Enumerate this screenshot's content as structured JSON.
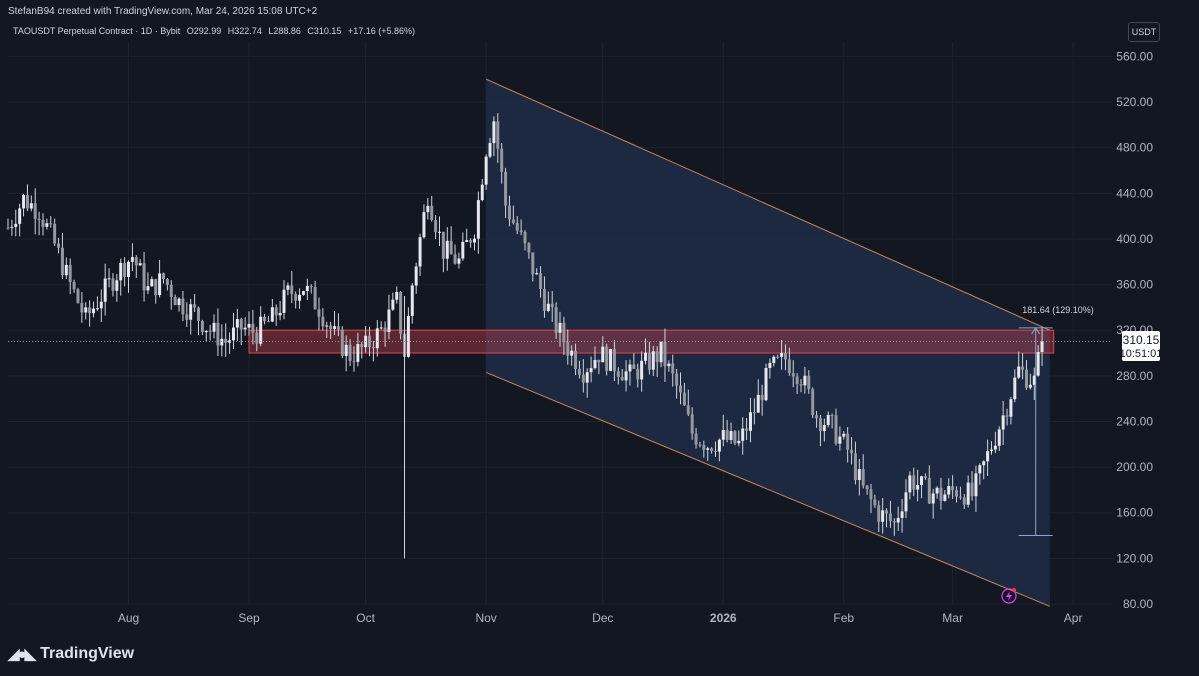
{
  "header": {
    "credit": "StefanB94 created with TradingView.com, Mar 24, 2026 15:08 UTC+2",
    "symbol": "TAOUSDT Perpetual Contract · 1D · Bybit",
    "open": "O292.99",
    "high": "H322.74",
    "low": "L288.86",
    "close": "C310.15",
    "change": "+17.16 (+5.86%)",
    "currency": "USDT"
  },
  "price_label": {
    "value": "310.15",
    "countdown": "10:51:01"
  },
  "measure_label": "181.64 (129.10%)",
  "footer": {
    "brand": "TradingView"
  },
  "colors": {
    "background": "#131722",
    "candle": "#d1d4dc",
    "channel_fill": "#1e2b44",
    "channel_line": "#c8855a",
    "resistance_zone": "#e0454f",
    "measure_line": "#8fa3c8"
  },
  "chart_data": {
    "type": "candlestick",
    "title": "TAOUSDT Perpetual Contract · 1D · Bybit",
    "ylim": [
      80,
      570
    ],
    "y_ticks": [
      80,
      120,
      160,
      200,
      240,
      280,
      320,
      360,
      400,
      440,
      480,
      520,
      560
    ],
    "y_tick_labels": [
      "80.00",
      "120.00",
      "160.00",
      "200.00",
      "240.00",
      "280.00",
      "320.00",
      "360.00",
      "400.00",
      "440.00",
      "480.00",
      "520.00",
      "560.00"
    ],
    "x_labels": [
      "Aug",
      "Sep",
      "Oct",
      "Nov",
      "Dec",
      "2026",
      "Feb",
      "Mar",
      "Apr"
    ],
    "x_label_dates": [
      "2025-08-01",
      "2025-09-01",
      "2025-10-01",
      "2025-11-01",
      "2025-12-01",
      "2026-01-01",
      "2026-02-01",
      "2026-03-01",
      "2026-04-01"
    ],
    "x_range": [
      "2025-07-01",
      "2026-04-11"
    ],
    "grid": true,
    "closes": [
      [
        "2025-07-01",
        410
      ],
      [
        "2025-07-05",
        435
      ],
      [
        "2025-07-09",
        425
      ],
      [
        "2025-07-13",
        395
      ],
      [
        "2025-07-17",
        360
      ],
      [
        "2025-07-21",
        330
      ],
      [
        "2025-07-25",
        350
      ],
      [
        "2025-07-29",
        370
      ],
      [
        "2025-08-02",
        385
      ],
      [
        "2025-08-06",
        355
      ],
      [
        "2025-08-10",
        365
      ],
      [
        "2025-08-14",
        345
      ],
      [
        "2025-08-18",
        335
      ],
      [
        "2025-08-22",
        320
      ],
      [
        "2025-08-26",
        310
      ],
      [
        "2025-08-30",
        322
      ],
      [
        "2025-09-03",
        318
      ],
      [
        "2025-09-07",
        330
      ],
      [
        "2025-09-11",
        352
      ],
      [
        "2025-09-15",
        358
      ],
      [
        "2025-09-19",
        340
      ],
      [
        "2025-09-23",
        315
      ],
      [
        "2025-09-27",
        298
      ],
      [
        "2025-10-01",
        305
      ],
      [
        "2025-10-05",
        320
      ],
      [
        "2025-10-09",
        345
      ],
      [
        "2025-10-11",
        300
      ],
      [
        "2025-10-13",
        360
      ],
      [
        "2025-10-17",
        440
      ],
      [
        "2025-10-21",
        390
      ],
      [
        "2025-10-25",
        380
      ],
      [
        "2025-10-29",
        410
      ],
      [
        "2025-11-01",
        480
      ],
      [
        "2025-11-03",
        505
      ],
      [
        "2025-11-06",
        430
      ],
      [
        "2025-11-10",
        400
      ],
      [
        "2025-11-14",
        365
      ],
      [
        "2025-11-18",
        330
      ],
      [
        "2025-11-22",
        305
      ],
      [
        "2025-11-26",
        285
      ],
      [
        "2025-11-30",
        300
      ],
      [
        "2025-12-04",
        290
      ],
      [
        "2025-12-08",
        280
      ],
      [
        "2025-12-12",
        290
      ],
      [
        "2025-12-16",
        300
      ],
      [
        "2025-12-20",
        270
      ],
      [
        "2025-12-24",
        230
      ],
      [
        "2025-12-28",
        220
      ],
      [
        "2026-01-01",
        225
      ],
      [
        "2026-01-05",
        220
      ],
      [
        "2026-01-09",
        250
      ],
      [
        "2026-01-13",
        285
      ],
      [
        "2026-01-17",
        295
      ],
      [
        "2026-01-21",
        280
      ],
      [
        "2026-01-25",
        245
      ],
      [
        "2026-01-29",
        235
      ],
      [
        "2026-02-02",
        215
      ],
      [
        "2026-02-06",
        180
      ],
      [
        "2026-02-10",
        160
      ],
      [
        "2026-02-14",
        150
      ],
      [
        "2026-02-18",
        190
      ],
      [
        "2026-02-22",
        180
      ],
      [
        "2026-02-26",
        175
      ],
      [
        "2026-03-02",
        180
      ],
      [
        "2026-03-06",
        175
      ],
      [
        "2026-03-10",
        210
      ],
      [
        "2026-03-14",
        245
      ],
      [
        "2026-03-18",
        285
      ],
      [
        "2026-03-22",
        275
      ],
      [
        "2026-03-24",
        310.15
      ]
    ],
    "annotations": {
      "descending_channel": {
        "upper": [
          [
            "2025-11-01",
            540
          ],
          [
            "2026-03-26",
            320
          ]
        ],
        "lower": [
          [
            "2025-11-01",
            283
          ],
          [
            "2026-03-26",
            78
          ]
        ]
      },
      "resistance_zone": {
        "from": "2025-09-01",
        "to": "2026-03-27",
        "low": 300,
        "high": 320
      },
      "price_range_measure": {
        "date": "2026-03-27",
        "low": 140,
        "high": 322,
        "label": "181.64 (129.10%)"
      },
      "last_price": 310.15
    }
  }
}
